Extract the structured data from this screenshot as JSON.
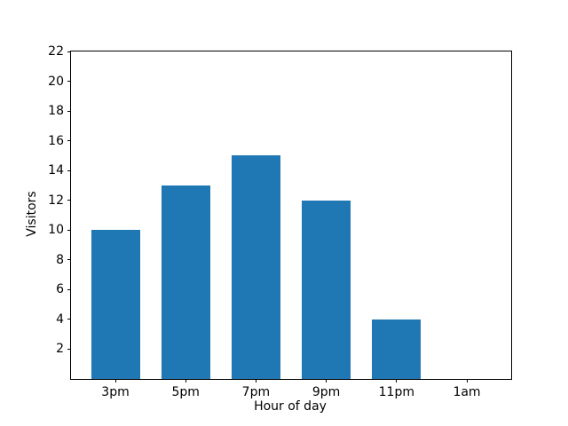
{
  "chart_data": {
    "type": "bar",
    "title": "",
    "xlabel": "Hour of day",
    "ylabel": "Visitors",
    "categories": [
      "3pm",
      "5pm",
      "7pm",
      "9pm",
      "11pm",
      "1am"
    ],
    "values": [
      10,
      13,
      15,
      12,
      4,
      0
    ],
    "ylim": [
      0,
      22
    ],
    "yticks": [
      2,
      4,
      6,
      8,
      10,
      12,
      14,
      16,
      18,
      20,
      22
    ],
    "bar_color": "#1f77b4",
    "axis_color": "#000000",
    "background_color": "#ffffff",
    "grid": false,
    "legend": null
  }
}
